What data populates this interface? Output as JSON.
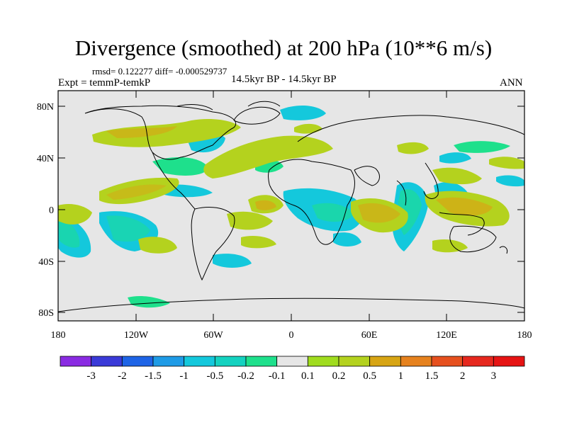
{
  "title": "Divergence (smoothed) at 200 hPa (10**6 m/s)",
  "stats": "rmsd= 0.122277 diff= -0.000529737",
  "experiment": "Expt = temmP-temkP",
  "period": "14.5kyr BP - 14.5kyr BP",
  "season": "ANN",
  "lat_ticks": [
    "80N",
    "40N",
    "0",
    "40S",
    "80S"
  ],
  "lon_ticks": [
    "180",
    "120W",
    "60W",
    "0",
    "60E",
    "120E",
    "180"
  ],
  "colorbar": {
    "labels": [
      "-3",
      "-2",
      "-1.5",
      "-1",
      "-0.5",
      "-0.2",
      "-0.1",
      "0.1",
      "0.2",
      "0.5",
      "1",
      "1.5",
      "2",
      "3"
    ],
    "colors": [
      "#8a2be2",
      "#3a3ad8",
      "#1e64e6",
      "#1e9be6",
      "#14c8dc",
      "#14d2c0",
      "#1ee08c",
      "#e6e6e6",
      "#a0dc1e",
      "#b4d21e",
      "#d7a514",
      "#e6821e",
      "#e6501e",
      "#e6281e",
      "#e61414"
    ]
  },
  "colors": {
    "background_map": "#e6e6e6",
    "neg_light": "#14c8dc",
    "neg_mid": "#1ee08c",
    "pos_light": "#a0dc1e",
    "pos_mid": "#b4d21e",
    "pos_strong": "#d7a514"
  }
}
